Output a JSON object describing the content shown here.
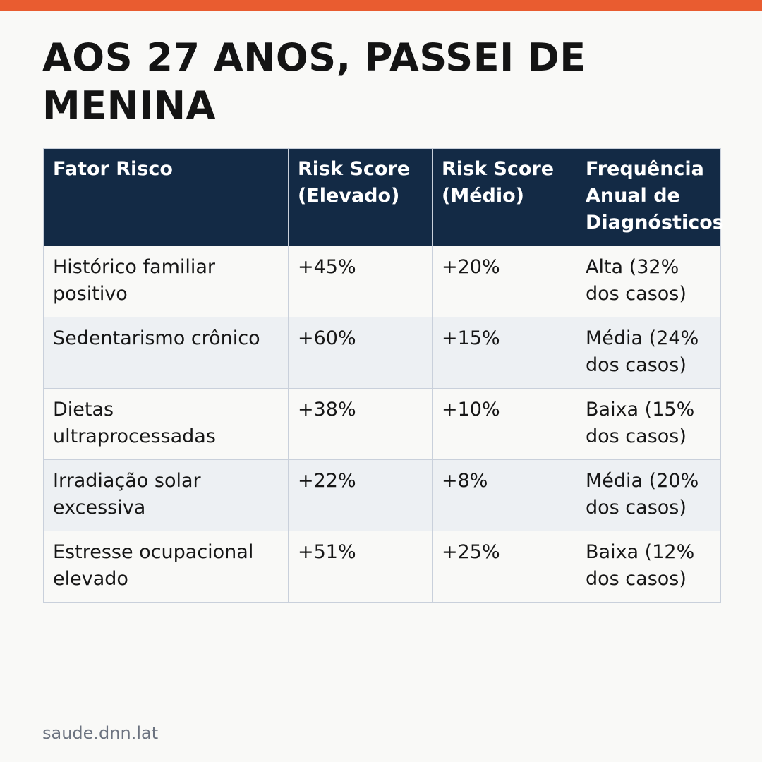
{
  "accent_color": "#e95c30",
  "header_color": "#132a45",
  "title": "AOS 27 ANOS, PASSEI DE MENINA",
  "table": {
    "headers": [
      "Fator Risco",
      "Risk Score (Elevado)",
      "Risk Score (Médio)",
      "Frequência Anual de Diagnósticos"
    ],
    "rows": [
      [
        "Histórico familiar positivo",
        "+45%",
        "+20%",
        "Alta (32% dos casos)"
      ],
      [
        "Sedentarismo crônico",
        "+60%",
        "+15%",
        "Média (24% dos casos)"
      ],
      [
        "Dietas ultraprocessadas",
        "+38%",
        "+10%",
        "Baixa (15% dos casos)"
      ],
      [
        "Irradiação solar excessiva",
        "+22%",
        "+8%",
        "Média (20% dos casos)"
      ],
      [
        "Estresse ocupacional elevado",
        "+51%",
        "+25%",
        "Baixa (12% dos casos)"
      ]
    ]
  },
  "footer": {
    "source": "saude.dnn.lat"
  }
}
